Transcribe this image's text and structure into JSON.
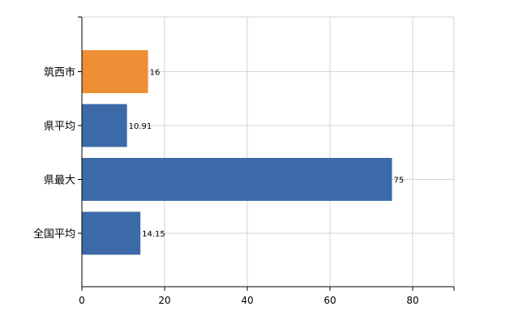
{
  "chart_data": {
    "type": "bar",
    "orientation": "horizontal",
    "categories": [
      "筑西市",
      "県平均",
      "県最大",
      "全国平均"
    ],
    "values": [
      16,
      10.91,
      75,
      14.15
    ],
    "value_labels": [
      "16",
      "10.91",
      "75",
      "14.15"
    ],
    "bar_colors": [
      "#ee8f35",
      "#3c6aa8",
      "#3c6aa8",
      "#3c6aa8"
    ],
    "highlight_color": "#ee8f35",
    "default_color": "#3c6aa8",
    "xlim": [
      0,
      90
    ],
    "x_ticks": [
      0,
      20,
      40,
      60,
      80
    ],
    "title": "",
    "xlabel": "",
    "ylabel": "",
    "grid": true,
    "legend": "none"
  }
}
